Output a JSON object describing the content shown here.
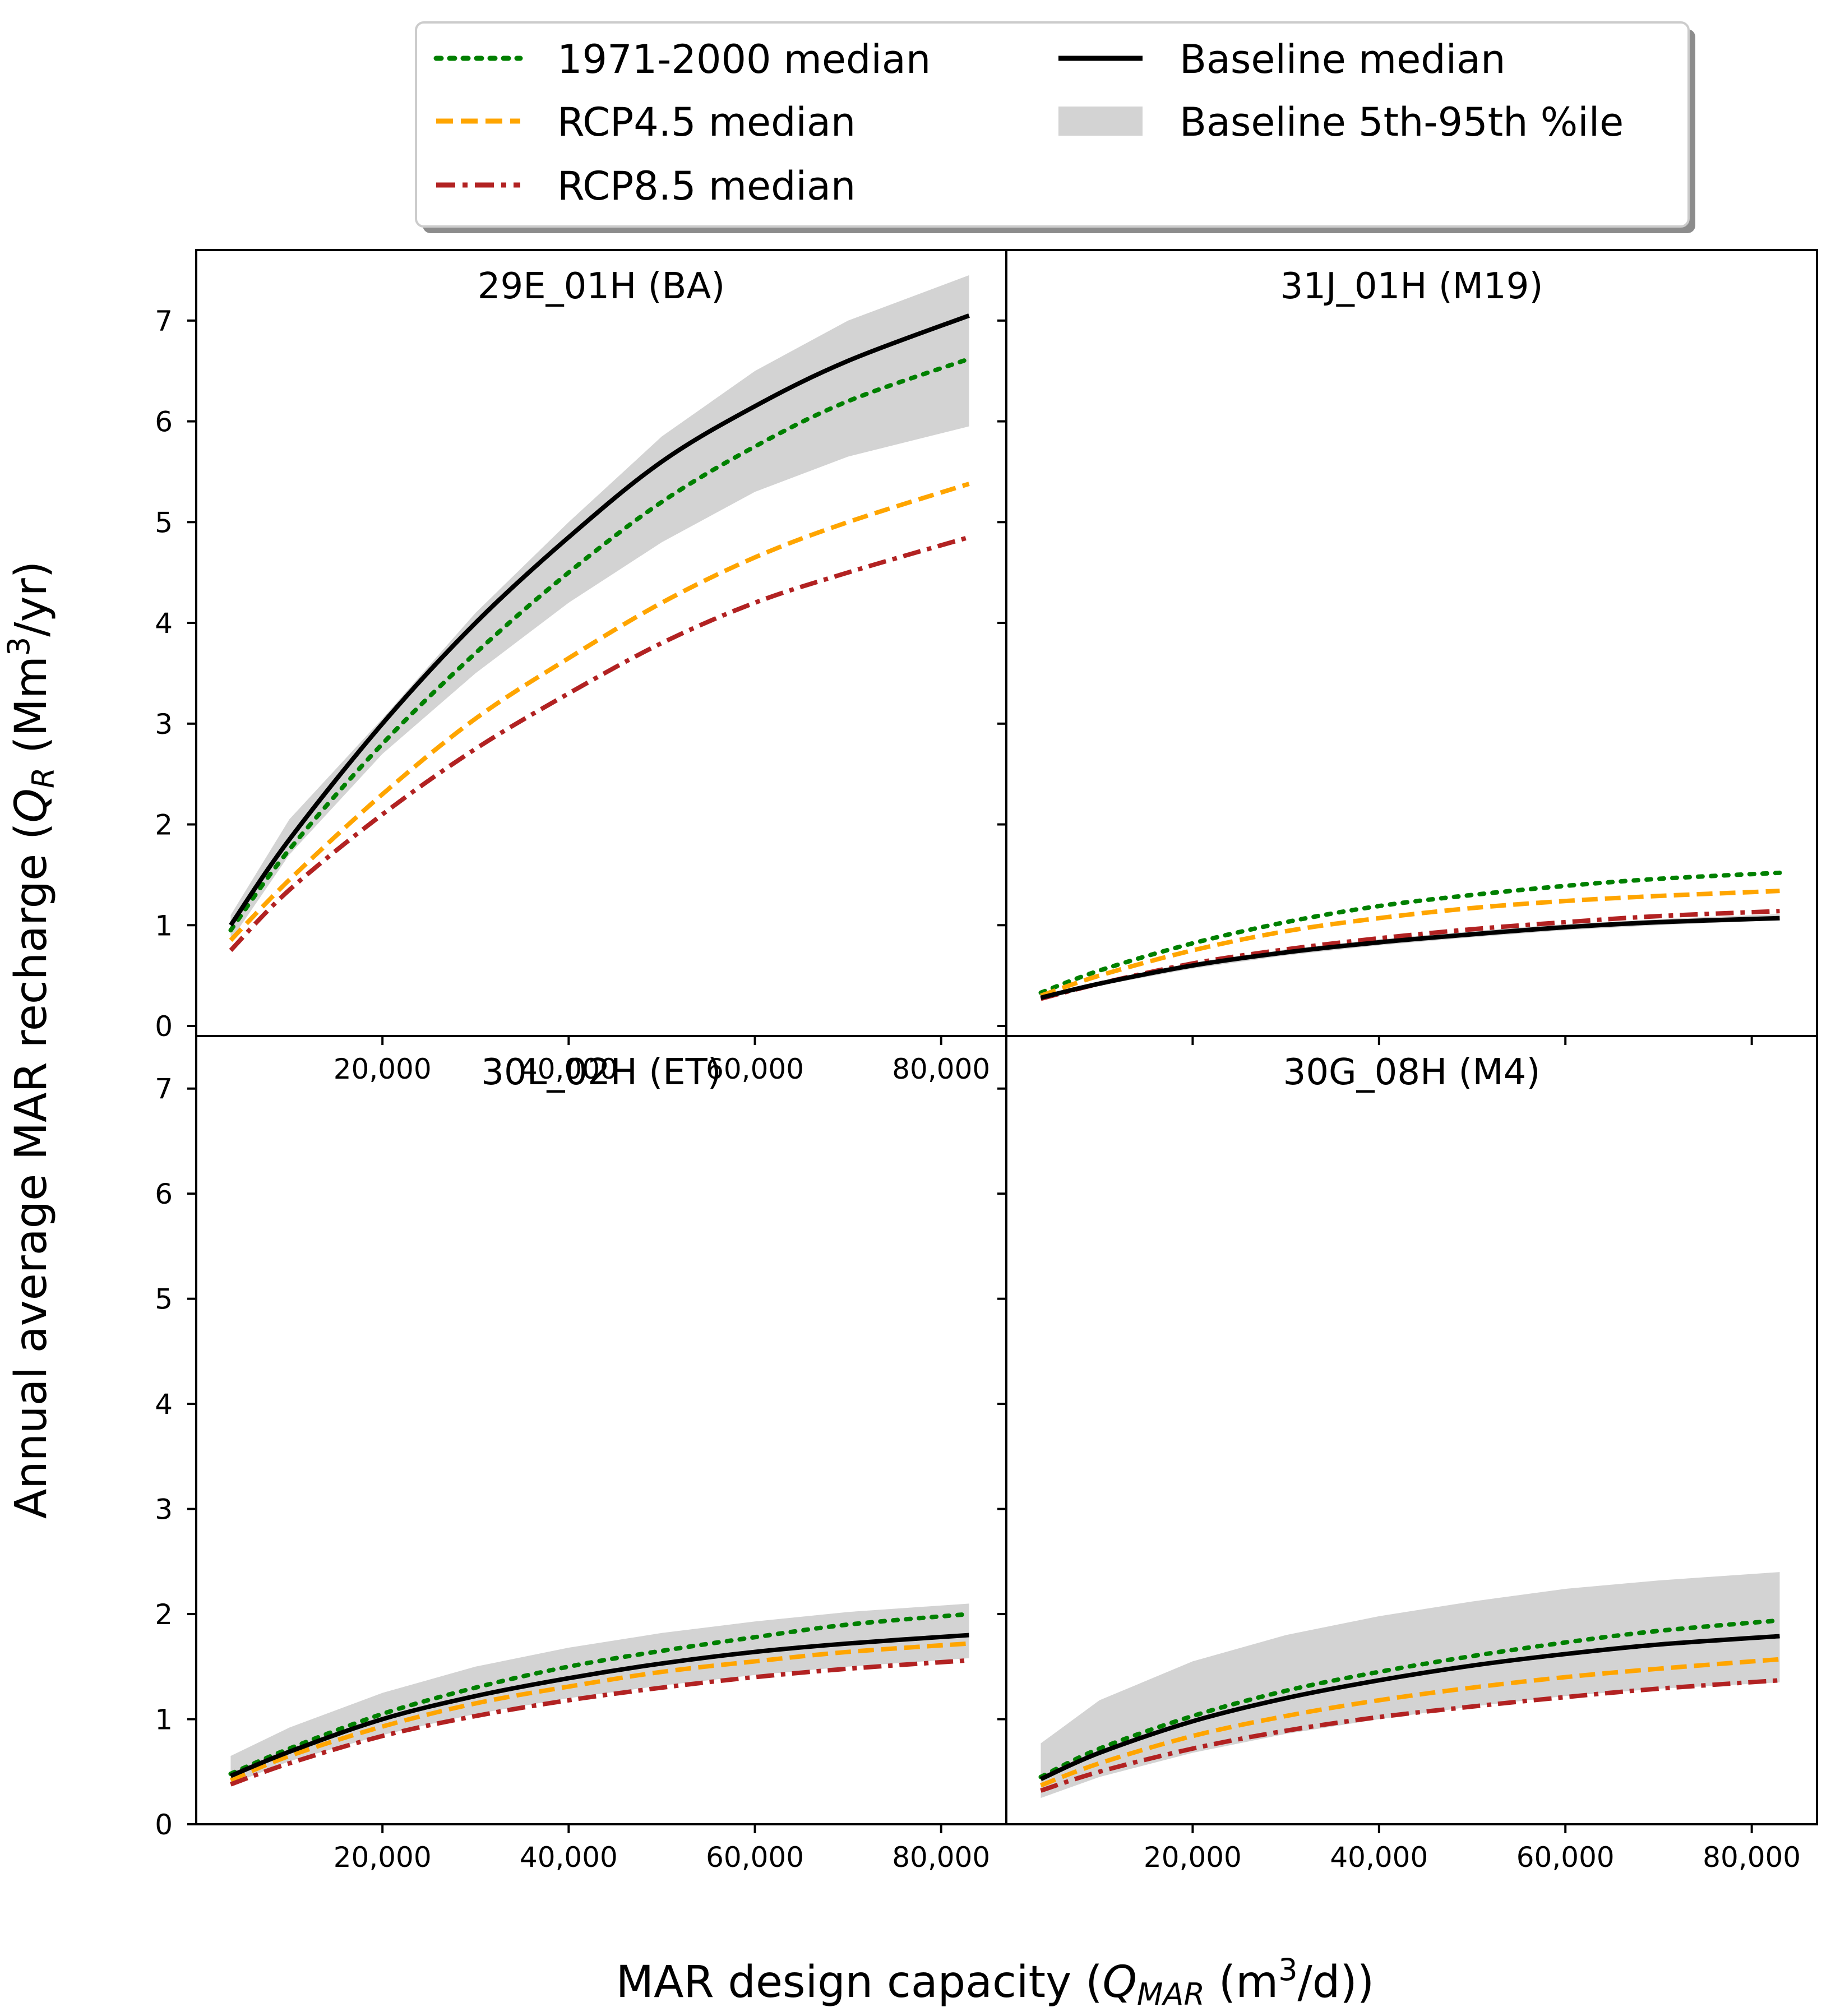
{
  "figure": {
    "xlabel": {
      "main": "MAR design capacity (",
      "sym": "Q",
      "sub": "MAR",
      "mid": " (m",
      "sup": "3",
      "tail": "/d))"
    },
    "ylabel": {
      "main": "Annual average MAR recharge (",
      "sym": "Q",
      "sub": "R",
      "mid": " (Mm",
      "sup": "3",
      "tail": "/yr)"
    }
  },
  "legend": {
    "placement": "top-center",
    "items": [
      {
        "key": "obs",
        "label": "1971-2000 median",
        "color": "#008000",
        "style": "dotted"
      },
      {
        "key": "baseline",
        "label": "Baseline median",
        "color": "#000000",
        "style": "solid"
      },
      {
        "key": "rcp45",
        "label": "RCP4.5 median",
        "color": "#FFA500",
        "style": "dashed"
      },
      {
        "key": "band",
        "label": "Baseline 5th-95th %ile",
        "color": "#D3D3D3",
        "style": "band"
      },
      {
        "key": "rcp85",
        "label": "RCP8.5 median",
        "color": "#B22222",
        "style": "dashdot"
      }
    ]
  },
  "chart_data": [
    {
      "type": "line",
      "title": "29E_01H (BA)",
      "xlim": [
        0,
        87000
      ],
      "ylim": [
        -0.1,
        7.7
      ],
      "yticks": [
        0,
        1,
        2,
        3,
        4,
        5,
        6,
        7
      ],
      "ytick_labels": [
        "0",
        "1",
        "2",
        "3",
        "4",
        "5",
        "6",
        "7"
      ],
      "xticks": [
        20000,
        40000,
        60000,
        80000
      ],
      "xtick_labels": [
        "20,000",
        "40,000",
        "60,000",
        "80,000"
      ],
      "x": [
        3700,
        10000,
        20000,
        30000,
        40000,
        50000,
        60000,
        70000,
        83000
      ],
      "band": {
        "lower": [
          0.85,
          1.7,
          2.7,
          3.5,
          4.2,
          4.8,
          5.3,
          5.65,
          5.95
        ],
        "upper": [
          1.1,
          2.05,
          3.05,
          4.1,
          5.0,
          5.85,
          6.5,
          7.0,
          7.45
        ]
      },
      "series": [
        {
          "key": "obs",
          "name": "1971-2000 median",
          "values": [
            0.95,
            1.75,
            2.8,
            3.7,
            4.5,
            5.2,
            5.75,
            6.2,
            6.62
          ]
        },
        {
          "key": "rcp45",
          "name": "RCP4.5 median",
          "values": [
            0.85,
            1.45,
            2.3,
            3.05,
            3.65,
            4.2,
            4.65,
            5.0,
            5.38
          ]
        },
        {
          "key": "rcp85",
          "name": "RCP8.5 median",
          "values": [
            0.75,
            1.35,
            2.1,
            2.75,
            3.3,
            3.8,
            4.2,
            4.5,
            4.85
          ]
        },
        {
          "key": "baseline",
          "name": "Baseline median",
          "values": [
            1.0,
            1.85,
            3.0,
            4.0,
            4.85,
            5.6,
            6.15,
            6.6,
            7.05
          ]
        }
      ]
    },
    {
      "type": "line",
      "title": "31J_01H (M19)",
      "xlim": [
        0,
        87000
      ],
      "ylim": [
        -0.1,
        7.7
      ],
      "yticks": [
        0,
        1,
        2,
        3,
        4,
        5,
        6,
        7
      ],
      "ytick_labels": [
        "",
        "",
        "",
        "",
        "",
        "",
        "",
        ""
      ],
      "xticks": [
        20000,
        40000,
        60000,
        80000
      ],
      "xtick_labels": [
        "",
        "",
        "",
        ""
      ],
      "x": [
        3700,
        10000,
        20000,
        30000,
        40000,
        50000,
        60000,
        70000,
        83000
      ],
      "band": {
        "lower": [
          0.26,
          0.4,
          0.57,
          0.7,
          0.8,
          0.88,
          0.95,
          1.0,
          1.05
        ],
        "upper": [
          0.3,
          0.44,
          0.63,
          0.76,
          0.86,
          0.94,
          1.01,
          1.06,
          1.11
        ]
      },
      "series": [
        {
          "key": "obs",
          "name": "1971-2000 median",
          "values": [
            0.33,
            0.55,
            0.82,
            1.03,
            1.19,
            1.3,
            1.39,
            1.46,
            1.52
          ]
        },
        {
          "key": "rcp45",
          "name": "RCP4.5 median",
          "values": [
            0.3,
            0.5,
            0.75,
            0.94,
            1.07,
            1.17,
            1.24,
            1.29,
            1.34
          ]
        },
        {
          "key": "rcp85",
          "name": "RCP8.5 median",
          "values": [
            0.27,
            0.42,
            0.62,
            0.76,
            0.87,
            0.96,
            1.03,
            1.09,
            1.14
          ]
        },
        {
          "key": "baseline",
          "name": "Baseline median",
          "values": [
            0.28,
            0.42,
            0.6,
            0.73,
            0.83,
            0.91,
            0.98,
            1.03,
            1.07
          ]
        }
      ]
    },
    {
      "type": "line",
      "title": "30L_02H (ET)",
      "xlim": [
        0,
        87000
      ],
      "ylim": [
        0,
        7.5
      ],
      "yticks": [
        0,
        1,
        2,
        3,
        4,
        5,
        6,
        7
      ],
      "ytick_labels": [
        "0",
        "1",
        "2",
        "3",
        "4",
        "5",
        "6",
        "7"
      ],
      "xticks": [
        20000,
        40000,
        60000,
        80000
      ],
      "xtick_labels": [
        "20,000",
        "40,000",
        "60,000",
        "80,000"
      ],
      "x": [
        3700,
        10000,
        20000,
        30000,
        40000,
        50000,
        60000,
        70000,
        83000
      ],
      "band": {
        "lower": [
          0.38,
          0.6,
          0.85,
          1.05,
          1.2,
          1.32,
          1.42,
          1.5,
          1.58
        ],
        "upper": [
          0.65,
          0.92,
          1.25,
          1.5,
          1.68,
          1.82,
          1.93,
          2.02,
          2.1
        ]
      },
      "series": [
        {
          "key": "obs",
          "name": "1971-2000 median",
          "values": [
            0.48,
            0.72,
            1.05,
            1.3,
            1.5,
            1.65,
            1.78,
            1.9,
            2.0
          ]
        },
        {
          "key": "rcp45",
          "name": "RCP4.5 median",
          "values": [
            0.42,
            0.65,
            0.93,
            1.15,
            1.31,
            1.45,
            1.55,
            1.64,
            1.72
          ]
        },
        {
          "key": "rcp85",
          "name": "RCP8.5 median",
          "values": [
            0.38,
            0.58,
            0.84,
            1.03,
            1.18,
            1.3,
            1.4,
            1.48,
            1.56
          ]
        },
        {
          "key": "baseline",
          "name": "Baseline median",
          "values": [
            0.46,
            0.69,
            1.0,
            1.22,
            1.39,
            1.53,
            1.64,
            1.72,
            1.8
          ]
        }
      ]
    },
    {
      "type": "line",
      "title": "30G_08H (M4)",
      "xlim": [
        0,
        87000
      ],
      "ylim": [
        0,
        7.5
      ],
      "yticks": [
        0,
        1,
        2,
        3,
        4,
        5,
        6,
        7
      ],
      "ytick_labels": [
        "",
        "",
        "",
        "",
        "",
        "",
        "",
        ""
      ],
      "xticks": [
        20000,
        40000,
        60000,
        80000
      ],
      "xtick_labels": [
        "20,000",
        "40,000",
        "60,000",
        "80,000"
      ],
      "x": [
        3700,
        10000,
        20000,
        30000,
        40000,
        50000,
        60000,
        70000,
        83000
      ],
      "band": {
        "lower": [
          0.25,
          0.45,
          0.68,
          0.86,
          1.0,
          1.12,
          1.22,
          1.29,
          1.35
        ],
        "upper": [
          0.77,
          1.18,
          1.55,
          1.8,
          1.98,
          2.12,
          2.24,
          2.32,
          2.4
        ]
      },
      "series": [
        {
          "key": "obs",
          "name": "1971-2000 median",
          "values": [
            0.45,
            0.72,
            1.03,
            1.27,
            1.45,
            1.6,
            1.73,
            1.84,
            1.94
          ]
        },
        {
          "key": "rcp45",
          "name": "RCP4.5 median",
          "values": [
            0.37,
            0.58,
            0.84,
            1.03,
            1.18,
            1.3,
            1.4,
            1.48,
            1.57
          ]
        },
        {
          "key": "rcp85",
          "name": "RCP8.5 median",
          "values": [
            0.32,
            0.5,
            0.72,
            0.89,
            1.02,
            1.12,
            1.21,
            1.29,
            1.37
          ]
        },
        {
          "key": "baseline",
          "name": "Baseline median",
          "values": [
            0.43,
            0.68,
            0.98,
            1.2,
            1.37,
            1.51,
            1.62,
            1.71,
            1.79
          ]
        }
      ]
    }
  ]
}
